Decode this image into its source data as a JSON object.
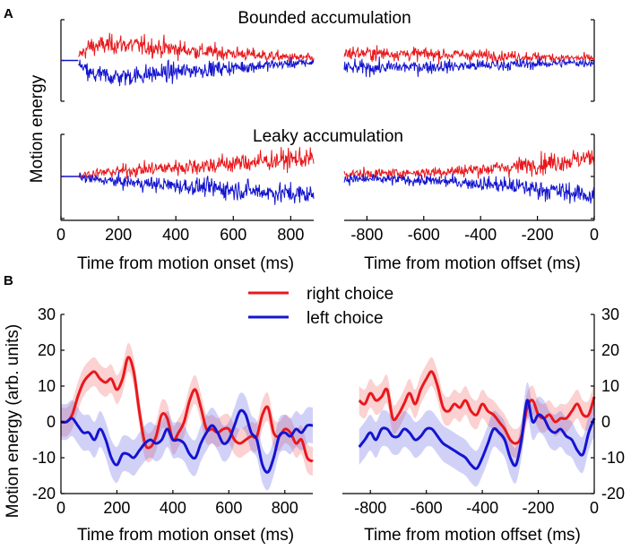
{
  "panel_labels": {
    "a": "A",
    "b": "B"
  },
  "chart_data": [
    {
      "type": "line",
      "title": "Bounded accumulation",
      "panel": "top-left",
      "xlabel": "Time from motion onset (ms)",
      "ylabel": "Motion energy",
      "xlim": [
        0,
        880
      ],
      "series": [
        {
          "name": "right choice",
          "color": "#e8181c",
          "values_x": [
            0,
            50,
            100,
            200,
            300,
            400,
            500,
            600,
            700,
            800,
            880
          ],
          "values_y": [
            0,
            0.05,
            0.55,
            0.65,
            0.55,
            0.45,
            0.35,
            0.28,
            0.2,
            0.12,
            0.08
          ]
        },
        {
          "name": "left choice",
          "color": "#1414d0",
          "values_x": [
            0,
            50,
            100,
            200,
            300,
            400,
            500,
            600,
            700,
            800,
            880
          ],
          "values_y": [
            0,
            -0.05,
            -0.55,
            -0.65,
            -0.55,
            -0.45,
            -0.35,
            -0.28,
            -0.2,
            -0.12,
            -0.08
          ]
        }
      ]
    },
    {
      "type": "line",
      "panel": "top-right",
      "xlabel": "",
      "xlim": [
        -880,
        0
      ],
      "series": [
        {
          "name": "right choice",
          "color": "#e8181c",
          "values_x": [
            -880,
            -700,
            -500,
            -300,
            -100,
            0
          ],
          "values_y": [
            0.3,
            0.27,
            0.23,
            0.17,
            0.1,
            0.08
          ]
        },
        {
          "name": "left choice",
          "color": "#1414d0",
          "values_x": [
            -880,
            -700,
            -500,
            -300,
            -100,
            0
          ],
          "values_y": [
            -0.3,
            -0.27,
            -0.23,
            -0.17,
            -0.1,
            -0.08
          ]
        }
      ]
    },
    {
      "type": "line",
      "title": "Leaky accumulation",
      "panel": "middle-left",
      "xlabel": "Time from motion onset (ms)",
      "xlim": [
        0,
        880
      ],
      "xticks": [
        0,
        200,
        400,
        600,
        800
      ],
      "series": [
        {
          "name": "right choice",
          "color": "#e8181c",
          "values_x": [
            0,
            50,
            100,
            200,
            300,
            400,
            500,
            600,
            700,
            800,
            880
          ],
          "values_y": [
            0,
            0,
            0.1,
            0.2,
            0.28,
            0.35,
            0.42,
            0.5,
            0.58,
            0.66,
            0.7
          ]
        },
        {
          "name": "left choice",
          "color": "#1414d0",
          "values_x": [
            0,
            50,
            100,
            200,
            300,
            400,
            500,
            600,
            700,
            800,
            880
          ],
          "values_y": [
            0,
            0,
            -0.1,
            -0.2,
            -0.28,
            -0.35,
            -0.42,
            -0.5,
            -0.58,
            -0.66,
            -0.7
          ]
        }
      ]
    },
    {
      "type": "line",
      "panel": "middle-right",
      "xlabel": "Time from motion offset (ms)",
      "xlim": [
        -880,
        0
      ],
      "xticks": [
        -800,
        -600,
        -400,
        -200,
        0
      ],
      "series": [
        {
          "name": "right choice",
          "color": "#e8181c",
          "values_x": [
            -880,
            -700,
            -500,
            -300,
            -100,
            0
          ],
          "values_y": [
            0.1,
            0.12,
            0.2,
            0.35,
            0.6,
            0.75
          ]
        },
        {
          "name": "left choice",
          "color": "#1414d0",
          "values_x": [
            -880,
            -700,
            -500,
            -300,
            -100,
            0
          ],
          "values_y": [
            -0.1,
            -0.12,
            -0.2,
            -0.35,
            -0.6,
            -0.75
          ]
        }
      ]
    },
    {
      "type": "line",
      "panel": "bottom-left",
      "xlabel": "Time from motion onset (ms)",
      "ylabel": "Motion energy (arb. units)",
      "xlim": [
        0,
        900
      ],
      "ylim": [
        -20,
        30
      ],
      "xticks": [
        0,
        200,
        400,
        600,
        800
      ],
      "yticks": [
        -20,
        -10,
        0,
        10,
        20,
        30
      ],
      "legend": {
        "position": "top-center",
        "entries": [
          "right choice",
          "left choice"
        ]
      },
      "series": [
        {
          "name": "right choice",
          "color": "#e8181c",
          "band": 4,
          "x": [
            0,
            20,
            40,
            60,
            80,
            100,
            120,
            140,
            160,
            180,
            200,
            220,
            240,
            260,
            280,
            300,
            320,
            340,
            360,
            380,
            400,
            420,
            440,
            460,
            480,
            500,
            520,
            540,
            560,
            580,
            600,
            620,
            640,
            660,
            680,
            700,
            720,
            740,
            760,
            780,
            800,
            820,
            840,
            860,
            880,
            900
          ],
          "values": [
            0,
            0,
            2,
            7,
            11,
            13,
            14,
            12,
            11,
            12,
            9,
            12,
            18,
            14,
            3,
            -6,
            -7,
            -4,
            2,
            1,
            -5,
            -3,
            0,
            6,
            9,
            4,
            -2,
            -2,
            -3,
            -2,
            -2,
            -5,
            -6,
            -5,
            -4,
            -4,
            2,
            4,
            -3,
            -4,
            -2,
            -3,
            -6,
            -5,
            -10,
            -11
          ]
        },
        {
          "name": "left choice",
          "color": "#1414d0",
          "band": 5,
          "x": [
            0,
            20,
            40,
            60,
            80,
            100,
            120,
            140,
            160,
            180,
            200,
            220,
            240,
            260,
            280,
            300,
            320,
            340,
            360,
            380,
            400,
            420,
            440,
            460,
            480,
            500,
            520,
            540,
            560,
            580,
            600,
            620,
            640,
            660,
            680,
            700,
            720,
            740,
            760,
            780,
            800,
            820,
            840,
            860,
            880,
            900
          ],
          "values": [
            0,
            0,
            1,
            -1,
            -3,
            -3,
            -5,
            -2,
            -5,
            -10,
            -12,
            -9,
            -9,
            -10,
            -8,
            -6,
            -5,
            -6,
            -5,
            -2,
            -5,
            -5,
            -6,
            -9,
            -10,
            -6,
            -3,
            -1,
            -3,
            -6,
            -5,
            -1,
            3,
            2,
            -3,
            -5,
            -12,
            -14,
            -10,
            -4,
            -3,
            -4,
            -2,
            -3,
            -1,
            -1
          ]
        }
      ]
    },
    {
      "type": "line",
      "panel": "bottom-right",
      "xlabel": "Time from motion offset (ms)",
      "xlim": [
        -900,
        0
      ],
      "ylim": [
        -20,
        30
      ],
      "xticks": [
        -800,
        -600,
        -400,
        -200,
        0
      ],
      "yticks": [
        -20,
        -10,
        0,
        10,
        20,
        30
      ],
      "series": [
        {
          "name": "right choice",
          "color": "#e8181c",
          "band": 4,
          "x": [
            -840,
            -820,
            -800,
            -780,
            -760,
            -740,
            -720,
            -700,
            -680,
            -660,
            -640,
            -620,
            -600,
            -580,
            -560,
            -540,
            -520,
            -500,
            -480,
            -460,
            -440,
            -420,
            -400,
            -380,
            -360,
            -340,
            -320,
            -300,
            -280,
            -260,
            -240,
            -220,
            -200,
            -180,
            -160,
            -140,
            -120,
            -100,
            -80,
            -60,
            -40,
            -20,
            0
          ],
          "values": [
            6,
            5,
            8,
            6,
            7,
            9,
            1,
            2,
            5,
            8,
            5,
            9,
            12,
            14,
            10,
            4,
            3,
            5,
            4,
            6,
            3,
            2,
            5,
            3,
            2,
            0,
            -2,
            -5,
            -6,
            -4,
            4,
            6,
            2,
            1,
            2,
            0,
            1,
            1,
            3,
            5,
            2,
            2,
            7
          ]
        },
        {
          "name": "left choice",
          "color": "#1414d0",
          "band": 5,
          "x": [
            -840,
            -820,
            -800,
            -780,
            -760,
            -740,
            -720,
            -700,
            -680,
            -660,
            -640,
            -620,
            -600,
            -580,
            -560,
            -540,
            -520,
            -500,
            -480,
            -460,
            -440,
            -420,
            -400,
            -380,
            -360,
            -340,
            -320,
            -300,
            -280,
            -260,
            -240,
            -220,
            -200,
            -180,
            -160,
            -140,
            -120,
            -100,
            -80,
            -60,
            -40,
            -20,
            0
          ],
          "values": [
            -7,
            -5,
            -3,
            -5,
            -2,
            -2,
            -4,
            -4,
            -2,
            -3,
            -5,
            -4,
            -2,
            -2,
            -4,
            -6,
            -7,
            -8,
            -9,
            -10,
            -12,
            -13,
            -10,
            -6,
            -2,
            -3,
            -5,
            -10,
            -12,
            -5,
            6,
            0,
            2,
            1,
            -2,
            -3,
            -2,
            -4,
            -5,
            -8,
            -9,
            -3,
            1
          ]
        }
      ]
    }
  ]
}
